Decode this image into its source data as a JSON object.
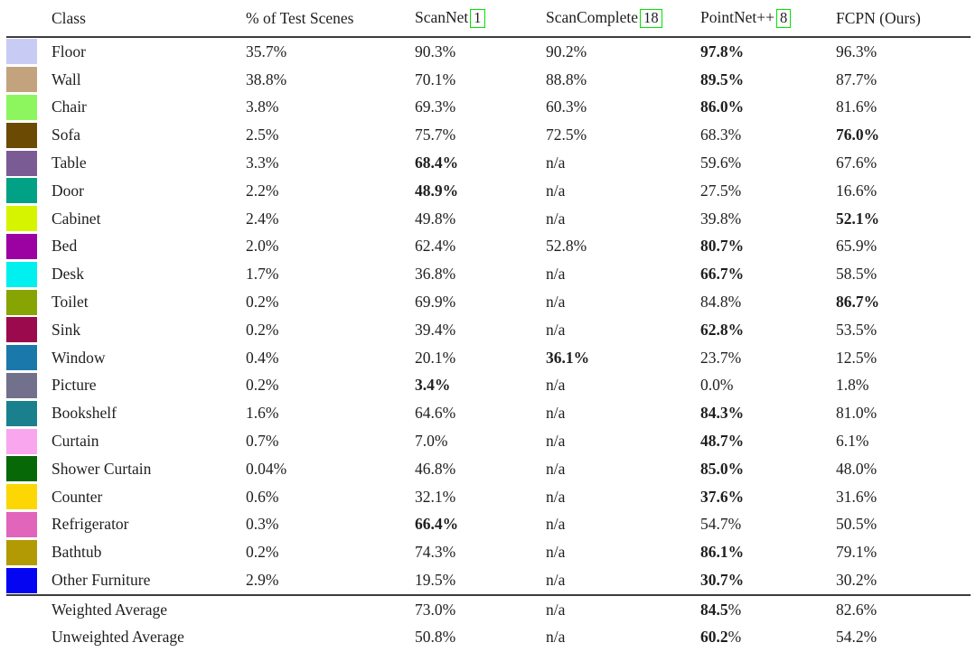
{
  "colors": {
    "citation_border": "#00e400",
    "rule": "#3d3d3d"
  },
  "table": {
    "headers": [
      {
        "label": "Class"
      },
      {
        "label": "% of Test Scenes"
      },
      {
        "label": "ScanNet",
        "cite": "1"
      },
      {
        "label": "ScanComplete",
        "cite": "18"
      },
      {
        "label": "PointNet++",
        "cite": "8"
      },
      {
        "label": "FCPN (Ours)"
      }
    ],
    "rows": [
      {
        "swatch": "#c8ccf5",
        "label": "Floor",
        "cells": [
          "35.7%",
          "90.3%",
          "90.2%",
          "97.8%",
          "96.3%"
        ],
        "bold": 3
      },
      {
        "swatch": "#c2a37e",
        "label": "Wall",
        "cells": [
          "38.8%",
          "70.1%",
          "88.8%",
          "89.5%",
          "87.7%"
        ],
        "bold": 3
      },
      {
        "swatch": "#8df65f",
        "label": "Chair",
        "cells": [
          "3.8%",
          "69.3%",
          "60.3%",
          "86.0%",
          "81.6%"
        ],
        "bold": 3
      },
      {
        "swatch": "#6b4a04",
        "label": "Sofa",
        "cells": [
          "2.5%",
          "75.7%",
          "72.5%",
          "68.3%",
          "76.0%"
        ],
        "bold": 4
      },
      {
        "swatch": "#7a5b94",
        "label": "Table",
        "cells": [
          "3.3%",
          "68.4%",
          "n/a",
          "59.6%",
          "67.6%"
        ],
        "bold": 1
      },
      {
        "swatch": "#00a184",
        "label": "Door",
        "cells": [
          "2.2%",
          "48.9%",
          "n/a",
          "27.5%",
          "16.6%"
        ],
        "bold": 1
      },
      {
        "swatch": "#d6f400",
        "label": "Cabinet",
        "cells": [
          "2.4%",
          "49.8%",
          "n/a",
          "39.8%",
          "52.1%"
        ],
        "bold": 4
      },
      {
        "swatch": "#9c02a1",
        "label": "Bed",
        "cells": [
          "2.0%",
          "62.4%",
          "52.8%",
          "80.7%",
          "65.9%"
        ],
        "bold": 3
      },
      {
        "swatch": "#00efef",
        "label": "Desk",
        "cells": [
          "1.7%",
          "36.8%",
          "n/a",
          "66.7%",
          "58.5%"
        ],
        "bold": 3
      },
      {
        "swatch": "#86a503",
        "label": "Toilet",
        "cells": [
          "0.2%",
          "69.9%",
          "n/a",
          "84.8%",
          "86.7%"
        ],
        "bold": 4
      },
      {
        "swatch": "#9c0a4e",
        "label": "Sink",
        "cells": [
          "0.2%",
          "39.4%",
          "n/a",
          "62.8%",
          "53.5%"
        ],
        "bold": 3
      },
      {
        "swatch": "#1a79aa",
        "label": "Window",
        "cells": [
          "0.4%",
          "20.1%",
          "36.1%",
          "23.7%",
          "12.5%"
        ],
        "bold": 2
      },
      {
        "swatch": "#71718c",
        "label": "Picture",
        "cells": [
          "0.2%",
          "3.4%",
          "n/a",
          "0.0%",
          "1.8%"
        ],
        "bold": 1
      },
      {
        "swatch": "#1a808e",
        "label": "Bookshelf",
        "cells": [
          "1.6%",
          "64.6%",
          "n/a",
          "84.3%",
          "81.0%"
        ],
        "bold": 3
      },
      {
        "swatch": "#f9a6ee",
        "label": "Curtain",
        "cells": [
          "0.7%",
          "7.0%",
          "n/a",
          "48.7%",
          "6.1%"
        ],
        "bold": 3
      },
      {
        "swatch": "#066806",
        "label": "Shower Curtain",
        "cells": [
          "0.04%",
          "46.8%",
          "n/a",
          "85.0%",
          "48.0%"
        ],
        "bold": 3
      },
      {
        "swatch": "#fcd703",
        "label": "Counter",
        "cells": [
          "0.6%",
          "32.1%",
          "n/a",
          "37.6%",
          "31.6%"
        ],
        "bold": 3
      },
      {
        "swatch": "#e065bb",
        "label": "Refrigerator",
        "cells": [
          "0.3%",
          "66.4%",
          "n/a",
          "54.7%",
          "50.5%"
        ],
        "bold": 1
      },
      {
        "swatch": "#b29a05",
        "label": "Bathtub",
        "cells": [
          "0.2%",
          "74.3%",
          "n/a",
          "86.1%",
          "79.1%"
        ],
        "bold": 3
      },
      {
        "swatch": "#0505f2",
        "label": "Other Furniture",
        "cells": [
          "2.9%",
          "19.5%",
          "n/a",
          "30.7%",
          "30.2%"
        ],
        "bold": 3
      }
    ],
    "footer_rows": [
      {
        "label": "Weighted Average",
        "cells": [
          "",
          "73.0%",
          "n/a",
          "84.5%",
          "82.6%"
        ],
        "bold": 3,
        "bold_pct": false
      },
      {
        "label": "Unweighted Average",
        "cells": [
          "",
          "50.8%",
          "n/a",
          "60.2%",
          "54.2%"
        ],
        "bold": 3,
        "bold_pct": false
      }
    ]
  }
}
